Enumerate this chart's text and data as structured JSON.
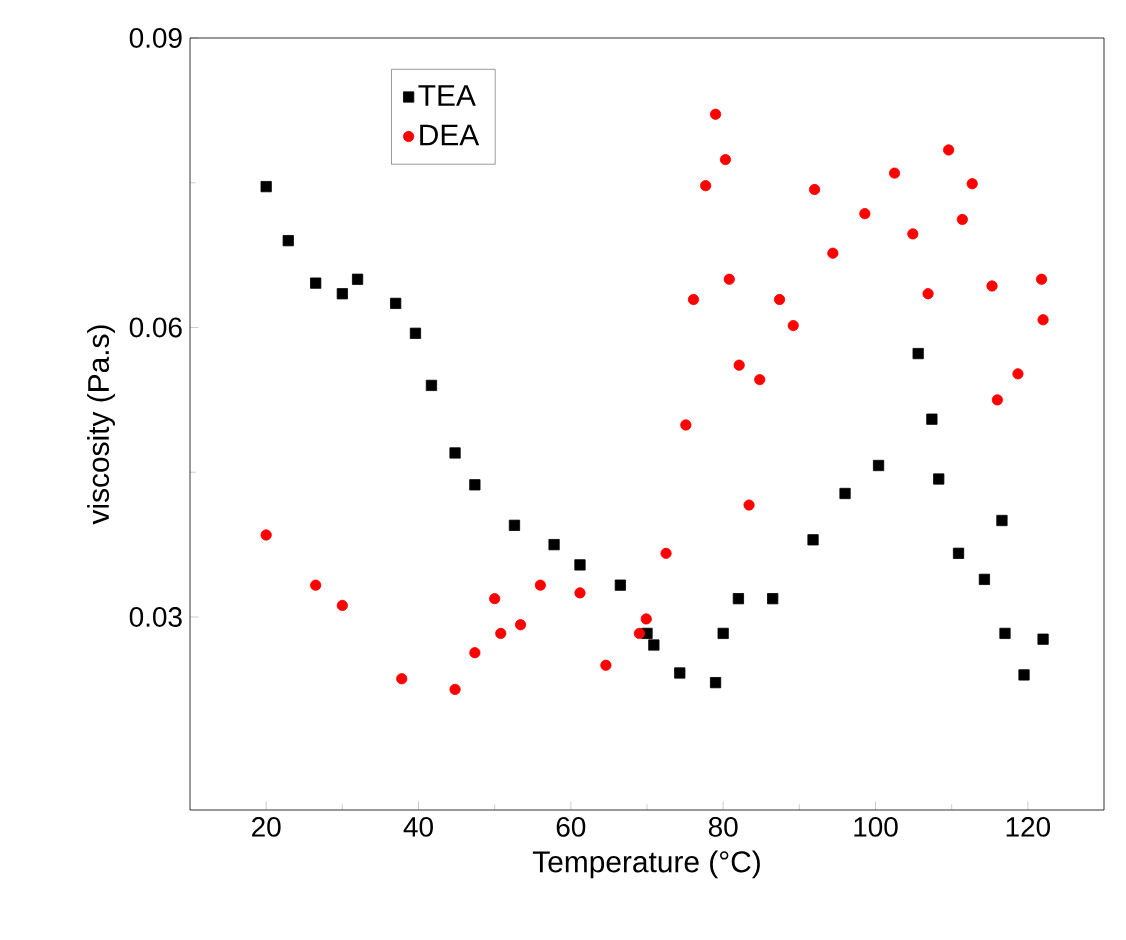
{
  "chart_data": {
    "type": "scatter",
    "xlabel": "Temperature (°C)",
    "ylabel": "viscosity (Pa.s)",
    "xlim": [
      10,
      130
    ],
    "ylim": [
      0.01,
      0.09
    ],
    "xticks": [
      20,
      40,
      60,
      80,
      100,
      120
    ],
    "yticks": [
      0.03,
      0.06,
      0.09
    ],
    "legend": "top left",
    "grid": false,
    "series": [
      {
        "name": "TEA",
        "color": "#000000",
        "marker": "square",
        "x": [
          20,
          22.9,
          26.5,
          30,
          32,
          37,
          39.6,
          41.7,
          44.8,
          47.4,
          52.6,
          57.8,
          61.2,
          66.5,
          70,
          70.9,
          74.3,
          79,
          80,
          82,
          86.5,
          91.8,
          96,
          100.4,
          105.6,
          107.4,
          108.3,
          110.9,
          114.3,
          116.6,
          117,
          119.5,
          122
        ],
        "values": [
          0.0746,
          0.069,
          0.0646,
          0.0635,
          0.065,
          0.0625,
          0.0594,
          0.054,
          0.047,
          0.0437,
          0.0395,
          0.0375,
          0.0354,
          0.0333,
          0.0283,
          0.0271,
          0.0242,
          0.0232,
          0.0283,
          0.0319,
          0.0319,
          0.038,
          0.0428,
          0.0457,
          0.0573,
          0.0505,
          0.0443,
          0.0366,
          0.0339,
          0.04,
          0.0283,
          0.024,
          0.0277
        ]
      },
      {
        "name": "DEA",
        "color": "#ff0000",
        "marker": "circle",
        "x": [
          20,
          26.5,
          30,
          37.8,
          44.8,
          47.4,
          50,
          50.8,
          53.4,
          56,
          61.2,
          64.6,
          69,
          69.9,
          72.5,
          75.1,
          76.1,
          77.7,
          79,
          80.3,
          80.8,
          82.1,
          83.4,
          84.8,
          87.4,
          89.2,
          92,
          94.4,
          98.6,
          102.5,
          104.9,
          106.9,
          109.6,
          111.4,
          112.7,
          115.3,
          116,
          118.7,
          121.8,
          122
        ],
        "values": [
          0.0385,
          0.0333,
          0.0312,
          0.0236,
          0.0225,
          0.0263,
          0.0319,
          0.0283,
          0.0292,
          0.0333,
          0.0325,
          0.025,
          0.0283,
          0.0298,
          0.0366,
          0.0499,
          0.0629,
          0.0747,
          0.0821,
          0.0774,
          0.065,
          0.0561,
          0.0416,
          0.0546,
          0.0629,
          0.0602,
          0.0743,
          0.0677,
          0.0718,
          0.076,
          0.0697,
          0.0635,
          0.0784,
          0.0712,
          0.0749,
          0.0643,
          0.0525,
          0.0552,
          0.065,
          0.0608
        ]
      }
    ]
  }
}
